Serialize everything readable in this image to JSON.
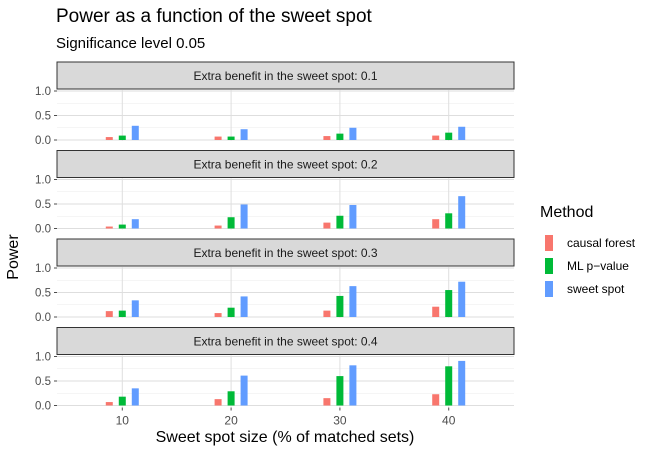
{
  "page": {
    "title": "Power as a function of the sweet spot",
    "subtitle": "Significance level 0.05"
  },
  "chart_data": {
    "type": "bar",
    "title": "Power as a function of the sweet spot",
    "subtitle": "Significance level 0.05",
    "xlabel": "Sweet spot size (% of matched sets)",
    "ylabel": "Power",
    "categories": [
      "10",
      "20",
      "30",
      "40"
    ],
    "ylim": [
      0,
      1
    ],
    "y_ticks": [
      "0.0",
      "0.5",
      "1.0"
    ],
    "grid": true,
    "legend_position": "right",
    "legend_title": "Method",
    "series_meta": [
      {
        "name": "causal forest",
        "color": "#F8766D"
      },
      {
        "name": "ML p−value",
        "color": "#00BA38"
      },
      {
        "name": "sweet spot",
        "color": "#619CFF"
      }
    ],
    "facets": [
      {
        "strip": "Extra benefit in the sweet spot:  0.1",
        "values": [
          [
            0.06,
            0.07,
            0.08,
            0.09
          ],
          [
            0.09,
            0.07,
            0.13,
            0.15
          ],
          [
            0.29,
            0.22,
            0.25,
            0.27
          ]
        ]
      },
      {
        "strip": "Extra benefit in the sweet spot:  0.2",
        "values": [
          [
            0.04,
            0.06,
            0.12,
            0.19
          ],
          [
            0.08,
            0.23,
            0.26,
            0.31
          ],
          [
            0.19,
            0.49,
            0.48,
            0.66
          ]
        ]
      },
      {
        "strip": "Extra benefit in the sweet spot:  0.3",
        "values": [
          [
            0.12,
            0.08,
            0.13,
            0.21
          ],
          [
            0.13,
            0.19,
            0.43,
            0.55
          ],
          [
            0.34,
            0.42,
            0.63,
            0.72
          ]
        ]
      },
      {
        "strip": "Extra benefit in the sweet spot:  0.4",
        "values": [
          [
            0.07,
            0.13,
            0.15,
            0.23
          ],
          [
            0.18,
            0.29,
            0.6,
            0.8
          ],
          [
            0.35,
            0.61,
            0.82,
            0.91
          ]
        ]
      }
    ]
  }
}
